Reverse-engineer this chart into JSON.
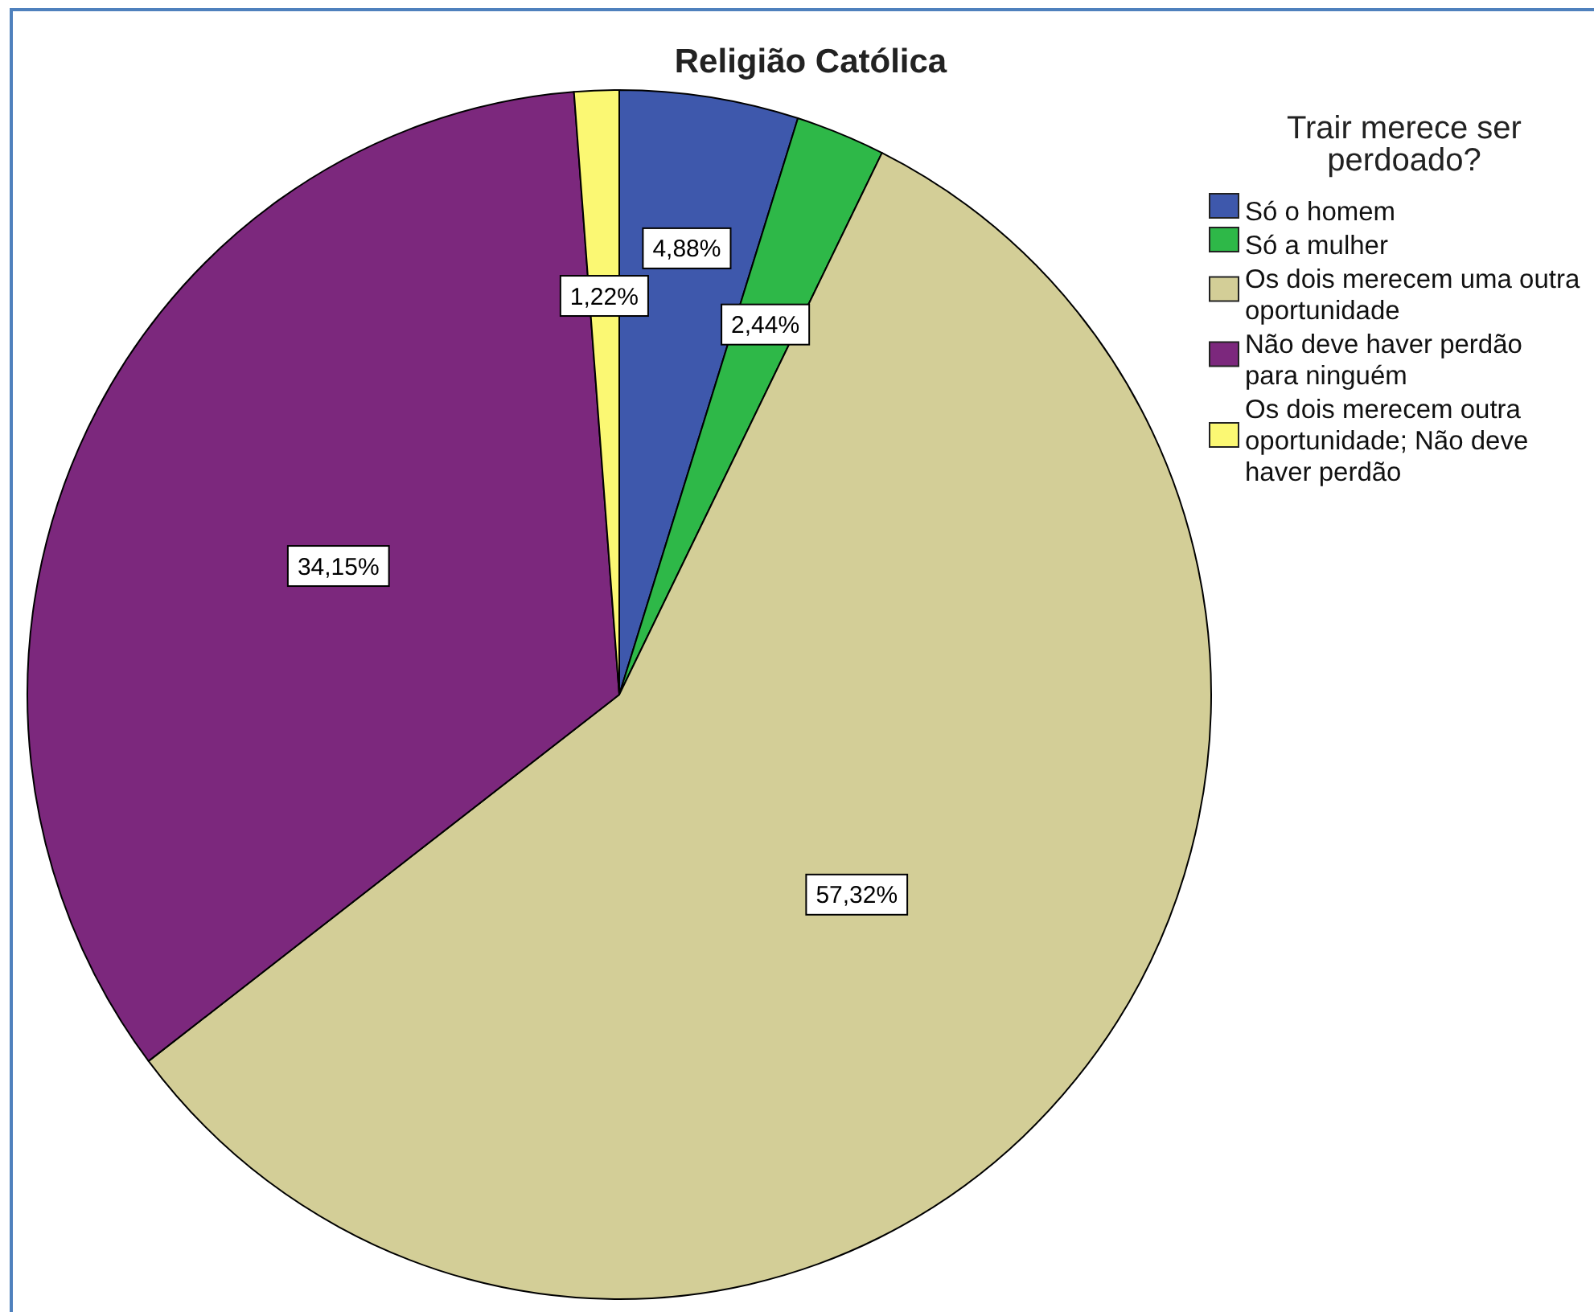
{
  "chart_data": {
    "type": "pie",
    "title": "Religião Católica",
    "legend_title": "Trair merece ser perdoado?",
    "categories": [
      "Só o homem",
      "Só a mulher",
      "Os dois merecem uma outra oportunidade",
      "Não deve haver perdão para ninguém",
      "Os dois merecem outra oportunidade; Não deve haver perdão"
    ],
    "values": [
      4.88,
      2.44,
      57.32,
      34.15,
      1.22
    ],
    "colors": [
      "#3e58ac",
      "#2eb848",
      "#d3ce97",
      "#7c287d",
      "#fbf873"
    ],
    "value_labels": [
      "4,88%",
      "2,44%",
      "57,32%",
      "34,15%",
      "1,22%"
    ],
    "legend": "top right"
  }
}
